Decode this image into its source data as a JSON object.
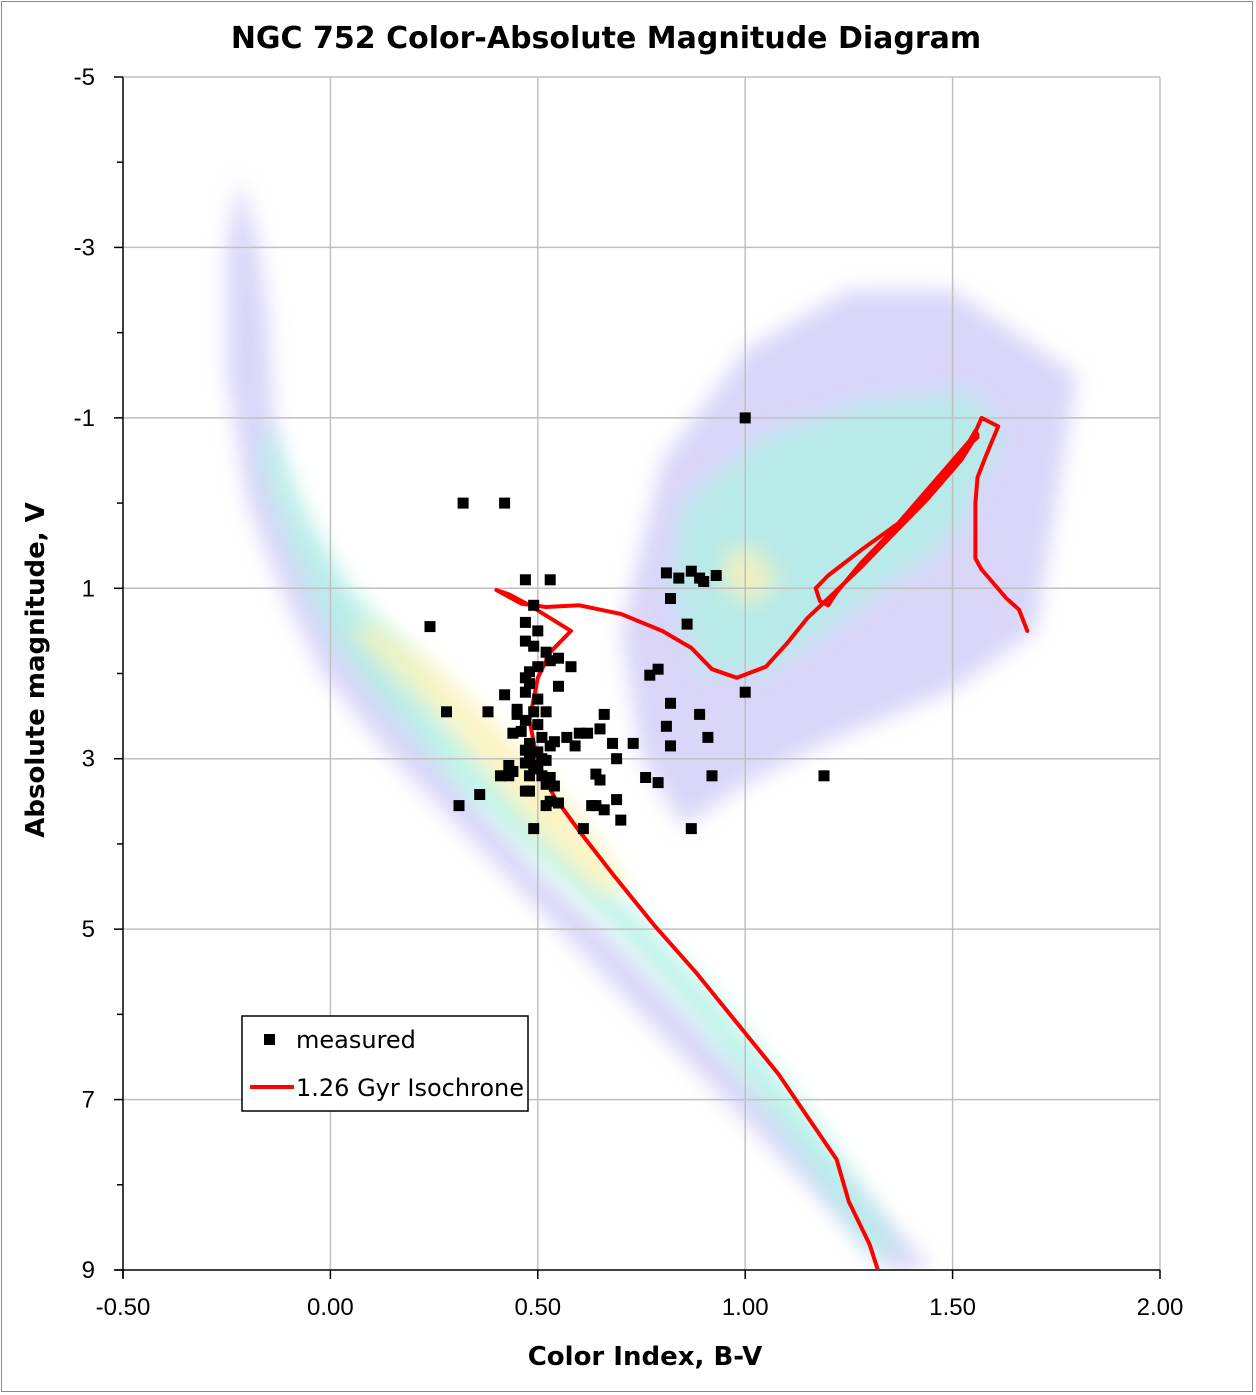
{
  "chart_data": {
    "type": "scatter",
    "title": "NGC 752 Color-Absolute Magnitude Diagram",
    "xlabel": "Color Index, B-V",
    "ylabel": "Absolute magnitude, V",
    "xlim": [
      -0.5,
      2.0
    ],
    "ylim": [
      -5,
      9
    ],
    "y_inverted": true,
    "grid": true,
    "x_major_ticks": [
      -0.5,
      0.0,
      0.5,
      1.0,
      1.5,
      2.0
    ],
    "x_tick_labels": [
      "-0.50",
      "0.00",
      "0.50",
      "1.00",
      "1.50",
      "2.00"
    ],
    "y_major_ticks": [
      -5,
      -3,
      -1,
      1,
      3,
      5,
      7,
      9
    ],
    "y_tick_labels": [
      "-5",
      "-3",
      "-1",
      "1",
      "3",
      "5",
      "7",
      "9"
    ],
    "legend_position": "lower-left",
    "colors": {
      "measured": "#000000",
      "isochrone": "#ff0000",
      "density_low": "#b9b4f2",
      "density_mid": "#aef0e4",
      "density_high": "#fbf1b6",
      "grid": "#c0c0c0"
    },
    "series": [
      {
        "name": "measured",
        "kind": "scatter",
        "marker": "square",
        "points": [
          [
            1.0,
            -1.0
          ],
          [
            0.32,
            0.0
          ],
          [
            0.42,
            0.0
          ],
          [
            0.47,
            0.9
          ],
          [
            0.53,
            0.9
          ],
          [
            0.49,
            1.2
          ],
          [
            0.24,
            1.45
          ],
          [
            0.47,
            1.4
          ],
          [
            0.5,
            1.5
          ],
          [
            0.47,
            1.62
          ],
          [
            0.49,
            1.68
          ],
          [
            0.52,
            1.75
          ],
          [
            0.55,
            1.82
          ],
          [
            0.53,
            1.85
          ],
          [
            0.58,
            1.92
          ],
          [
            0.48,
            1.98
          ],
          [
            0.5,
            1.92
          ],
          [
            0.47,
            2.05
          ],
          [
            0.48,
            2.12
          ],
          [
            0.55,
            2.15
          ],
          [
            0.47,
            2.22
          ],
          [
            0.42,
            2.25
          ],
          [
            0.5,
            2.3
          ],
          [
            0.28,
            2.45
          ],
          [
            0.38,
            2.45
          ],
          [
            0.45,
            2.42
          ],
          [
            0.49,
            2.45
          ],
          [
            0.52,
            2.45
          ],
          [
            0.45,
            2.48
          ],
          [
            0.47,
            2.55
          ],
          [
            0.66,
            2.48
          ],
          [
            0.5,
            2.6
          ],
          [
            0.65,
            2.65
          ],
          [
            0.44,
            2.7
          ],
          [
            0.46,
            2.68
          ],
          [
            0.6,
            2.7
          ],
          [
            0.62,
            2.7
          ],
          [
            0.57,
            2.75
          ],
          [
            0.51,
            2.75
          ],
          [
            0.54,
            2.8
          ],
          [
            0.48,
            2.82
          ],
          [
            0.59,
            2.85
          ],
          [
            0.53,
            2.85
          ],
          [
            0.47,
            2.9
          ],
          [
            0.5,
            2.92
          ],
          [
            0.68,
            2.82
          ],
          [
            0.73,
            2.82
          ],
          [
            0.48,
            2.95
          ],
          [
            0.51,
            3.0
          ],
          [
            0.52,
            3.02
          ],
          [
            0.47,
            3.05
          ],
          [
            0.69,
            3.0
          ],
          [
            0.43,
            3.08
          ],
          [
            0.49,
            3.08
          ],
          [
            0.44,
            3.15
          ],
          [
            0.5,
            3.12
          ],
          [
            0.43,
            3.2
          ],
          [
            0.41,
            3.2
          ],
          [
            0.48,
            3.2
          ],
          [
            0.51,
            3.2
          ],
          [
            0.53,
            3.22
          ],
          [
            0.64,
            3.18
          ],
          [
            0.65,
            3.25
          ],
          [
            0.76,
            3.22
          ],
          [
            0.79,
            3.28
          ],
          [
            0.52,
            3.3
          ],
          [
            0.54,
            3.32
          ],
          [
            0.47,
            3.38
          ],
          [
            0.48,
            3.38
          ],
          [
            0.36,
            3.42
          ],
          [
            0.69,
            3.48
          ],
          [
            0.53,
            3.5
          ],
          [
            0.55,
            3.52
          ],
          [
            0.52,
            3.55
          ],
          [
            0.31,
            3.55
          ],
          [
            0.63,
            3.55
          ],
          [
            0.64,
            3.55
          ],
          [
            0.66,
            3.6
          ],
          [
            0.7,
            3.72
          ],
          [
            0.61,
            3.82
          ],
          [
            0.49,
            3.82
          ],
          [
            0.87,
            3.82
          ],
          [
            0.81,
            0.82
          ],
          [
            0.84,
            0.88
          ],
          [
            0.87,
            0.8
          ],
          [
            0.89,
            0.88
          ],
          [
            0.9,
            0.92
          ],
          [
            0.93,
            0.85
          ],
          [
            0.82,
            1.12
          ],
          [
            0.86,
            1.42
          ],
          [
            0.79,
            1.95
          ],
          [
            0.77,
            2.02
          ],
          [
            1.0,
            2.22
          ],
          [
            0.82,
            2.35
          ],
          [
            0.89,
            2.48
          ],
          [
            0.81,
            2.62
          ],
          [
            0.91,
            2.75
          ],
          [
            0.82,
            2.85
          ],
          [
            0.92,
            3.2
          ],
          [
            1.19,
            3.2
          ]
        ]
      },
      {
        "name": "1.26 Gyr Isochrone",
        "kind": "line",
        "points": [
          [
            1.32,
            9.0
          ],
          [
            1.3,
            8.7
          ],
          [
            1.25,
            8.2
          ],
          [
            1.22,
            7.7
          ],
          [
            1.15,
            7.2
          ],
          [
            1.08,
            6.7
          ],
          [
            0.98,
            6.1
          ],
          [
            0.88,
            5.5
          ],
          [
            0.78,
            4.95
          ],
          [
            0.68,
            4.35
          ],
          [
            0.6,
            3.85
          ],
          [
            0.54,
            3.45
          ],
          [
            0.5,
            3.05
          ],
          [
            0.48,
            2.55
          ],
          [
            0.5,
            2.05
          ],
          [
            0.53,
            1.75
          ],
          [
            0.56,
            1.6
          ],
          [
            0.58,
            1.5
          ],
          [
            0.54,
            1.38
          ],
          [
            0.48,
            1.2
          ],
          [
            0.43,
            1.07
          ],
          [
            0.4,
            1.02
          ],
          [
            0.46,
            1.18
          ],
          [
            0.52,
            1.22
          ],
          [
            0.6,
            1.2
          ],
          [
            0.7,
            1.3
          ],
          [
            0.8,
            1.5
          ],
          [
            0.87,
            1.7
          ],
          [
            0.92,
            1.95
          ],
          [
            0.98,
            2.05
          ],
          [
            1.05,
            1.92
          ],
          [
            1.1,
            1.65
          ],
          [
            1.15,
            1.35
          ],
          [
            1.2,
            1.12
          ],
          [
            1.28,
            0.75
          ],
          [
            1.36,
            0.35
          ],
          [
            1.44,
            -0.05
          ],
          [
            1.52,
            -0.5
          ],
          [
            1.55,
            -0.73
          ],
          [
            1.56,
            -0.77
          ],
          [
            1.52,
            -0.6
          ],
          [
            1.45,
            -0.2
          ],
          [
            1.38,
            0.2
          ],
          [
            1.28,
            0.55
          ],
          [
            1.2,
            0.85
          ],
          [
            1.17,
            1.0
          ],
          [
            1.18,
            1.15
          ],
          [
            1.2,
            1.2
          ],
          [
            1.22,
            1.05
          ],
          [
            1.28,
            0.7
          ],
          [
            1.36,
            0.3
          ],
          [
            1.44,
            -0.1
          ],
          [
            1.52,
            -0.55
          ],
          [
            1.555,
            -0.85
          ],
          [
            1.56,
            -0.8
          ],
          [
            1.5,
            -0.5
          ],
          [
            1.42,
            -0.05
          ],
          [
            1.34,
            0.4
          ],
          [
            1.42,
            -0.05
          ],
          [
            1.5,
            -0.5
          ],
          [
            1.55,
            -0.78
          ],
          [
            1.57,
            -1.0
          ],
          [
            1.61,
            -0.9
          ],
          [
            1.58,
            -0.55
          ],
          [
            1.56,
            -0.3
          ],
          [
            1.555,
            0.0
          ],
          [
            1.555,
            0.4
          ],
          [
            1.555,
            0.65
          ],
          [
            1.57,
            0.78
          ],
          [
            1.6,
            0.95
          ],
          [
            1.63,
            1.12
          ],
          [
            1.66,
            1.25
          ],
          [
            1.68,
            1.5
          ]
        ]
      }
    ],
    "background_density": {
      "description_kind": "field-star density heatmap",
      "regions": [
        {
          "level": "low",
          "points": [
            [
              -0.22,
              -3.8
            ],
            [
              -0.18,
              -3.2
            ],
            [
              -0.15,
              -2.2
            ],
            [
              -0.14,
              -1.2
            ],
            [
              -0.12,
              -0.2
            ],
            [
              -0.05,
              0.5
            ],
            [
              0.05,
              1.3
            ],
            [
              0.15,
              2.0
            ],
            [
              0.25,
              2.8
            ],
            [
              0.35,
              3.5
            ],
            [
              0.5,
              4.3
            ],
            [
              0.7,
              5.2
            ],
            [
              0.9,
              6.2
            ],
            [
              1.1,
              7.2
            ],
            [
              1.3,
              8.2
            ],
            [
              1.45,
              9.0
            ],
            [
              1.35,
              9.0
            ],
            [
              1.15,
              8.0
            ],
            [
              0.95,
              7.0
            ],
            [
              0.75,
              6.0
            ],
            [
              0.55,
              5.0
            ],
            [
              0.35,
              4.0
            ],
            [
              0.15,
              3.0
            ],
            [
              -0.02,
              2.0
            ],
            [
              -0.12,
              1.0
            ],
            [
              -0.2,
              0.0
            ],
            [
              -0.25,
              -1.5
            ],
            [
              -0.25,
              -3.0
            ]
          ]
        },
        {
          "level": "low",
          "points": [
            [
              0.8,
              -0.5
            ],
            [
              1.0,
              -1.8
            ],
            [
              1.25,
              -2.5
            ],
            [
              1.5,
              -2.5
            ],
            [
              1.65,
              -2.0
            ],
            [
              1.8,
              -1.5
            ],
            [
              1.75,
              0.0
            ],
            [
              1.7,
              1.5
            ],
            [
              1.5,
              2.2
            ],
            [
              1.2,
              2.8
            ],
            [
              1.0,
              3.3
            ],
            [
              0.85,
              3.8
            ],
            [
              0.75,
              3.0
            ],
            [
              0.7,
              1.5
            ]
          ]
        },
        {
          "level": "mid",
          "points": [
            [
              -0.15,
              -1.0
            ],
            [
              -0.05,
              0.2
            ],
            [
              0.05,
              1.0
            ],
            [
              0.2,
              1.8
            ],
            [
              0.3,
              2.6
            ],
            [
              0.45,
              3.4
            ],
            [
              0.6,
              4.2
            ],
            [
              0.78,
              5.0
            ],
            [
              0.95,
              5.9
            ],
            [
              1.1,
              6.8
            ],
            [
              1.25,
              7.8
            ],
            [
              1.38,
              8.8
            ],
            [
              1.3,
              8.8
            ],
            [
              1.15,
              7.8
            ],
            [
              1.0,
              6.8
            ],
            [
              0.85,
              5.9
            ],
            [
              0.68,
              5.0
            ],
            [
              0.5,
              4.2
            ],
            [
              0.32,
              3.4
            ],
            [
              0.15,
              2.5
            ],
            [
              0.0,
              1.6
            ],
            [
              -0.1,
              0.5
            ],
            [
              -0.17,
              -0.5
            ]
          ]
        },
        {
          "level": "mid",
          "points": [
            [
              0.85,
              0.0
            ],
            [
              1.05,
              -0.8
            ],
            [
              1.3,
              -1.2
            ],
            [
              1.55,
              -1.3
            ],
            [
              1.62,
              -0.8
            ],
            [
              1.5,
              0.4
            ],
            [
              1.25,
              1.3
            ],
            [
              1.05,
              2.0
            ],
            [
              0.9,
              2.0
            ],
            [
              0.82,
              1.0
            ]
          ]
        },
        {
          "level": "high",
          "points": [
            [
              0.1,
              1.4
            ],
            [
              0.25,
              1.9
            ],
            [
              0.4,
              2.6
            ],
            [
              0.52,
              3.2
            ],
            [
              0.62,
              3.8
            ],
            [
              0.72,
              4.5
            ],
            [
              0.65,
              4.6
            ],
            [
              0.52,
              4.0
            ],
            [
              0.4,
              3.3
            ],
            [
              0.28,
              2.6
            ],
            [
              0.15,
              2.0
            ],
            [
              0.05,
              1.5
            ]
          ]
        },
        {
          "level": "high",
          "points": [
            [
              0.95,
              0.6
            ],
            [
              1.02,
              0.5
            ],
            [
              1.08,
              0.9
            ],
            [
              1.02,
              1.2
            ],
            [
              0.95,
              1.0
            ]
          ]
        }
      ]
    }
  }
}
